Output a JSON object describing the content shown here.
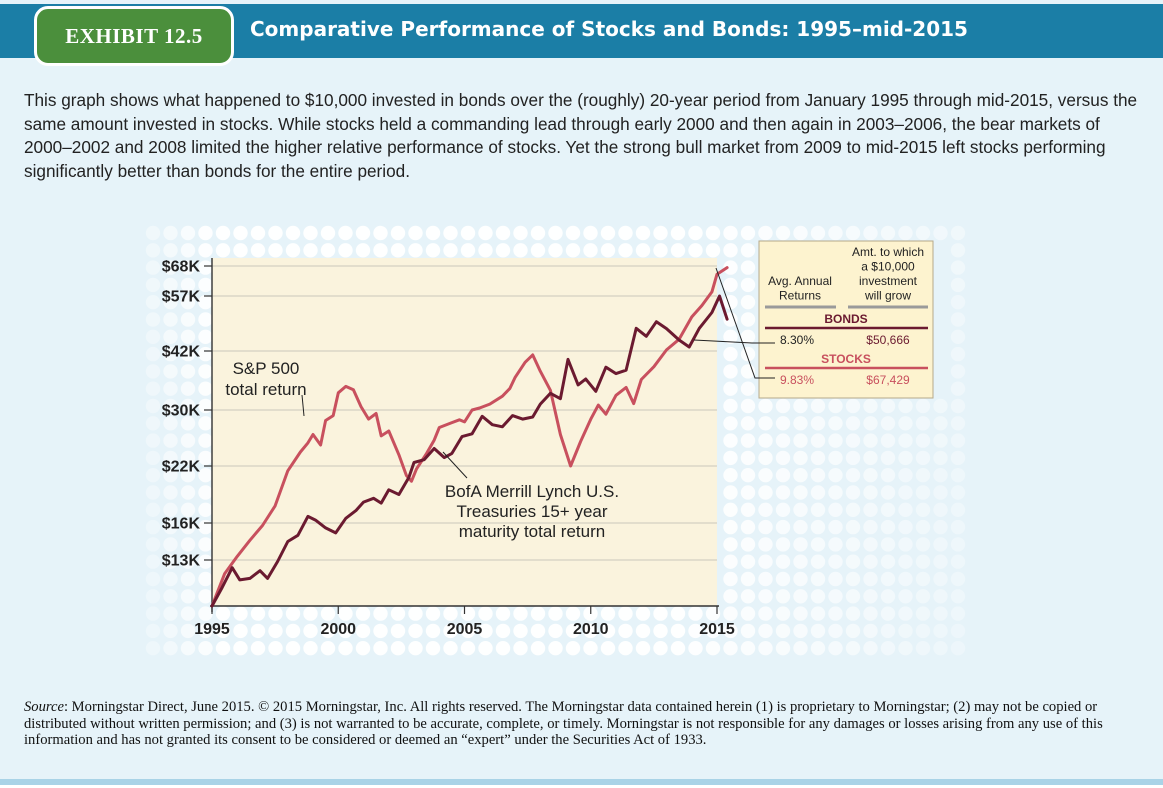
{
  "exhibit_label": "EXHIBIT 12.5",
  "title": "Comparative Performance of Stocks and Bonds: 1995–mid-2015",
  "caption": "This graph shows what happened to $10,000 invested in bonds over the (roughly) 20-year period from January 1995 through mid-2015, versus the same amount invested in stocks. While stocks held a commanding lead through early 2000 and then again in 2003–2006, the bear markets of 2000–2002 and 2008 limited the higher relative performance of stocks. Yet the strong bull market from 2009 to mid-2015 left stocks performing significantly better than bonds for the entire period.",
  "source": {
    "label": "Source",
    "text": ": Morningstar Direct, June 2015. © 2015 Morningstar, Inc. All rights reserved. The Morningstar data contained herein (1) is proprietary to Morningstar; (2) may not be copied or distributed without written permission; and (3) is not warranted to be accurate, complete, or timely. Morningstar is not responsible for any damages or losses arising from any use of this information and has not granted its consent to be considered or deemed an “expert” under the Securities Act of 1933."
  },
  "colors": {
    "header_band": "#1b7ea6",
    "badge": "#4b8f3c",
    "panel": "#e6f3f9",
    "plot_bg": "#faf3dd",
    "stocks": "#c8505e",
    "bonds": "#6b1a30",
    "dots": "#ffffff"
  },
  "chart_data": {
    "type": "line",
    "title": "",
    "xlabel": "",
    "ylabel": "",
    "ylim": [
      10000,
      70000
    ],
    "xlim": [
      1995,
      2015
    ],
    "x_ticks": [
      1995,
      2000,
      2005,
      2010,
      2015
    ],
    "x_tick_labels": [
      "1995",
      "2000",
      "2005",
      "2010",
      "2015"
    ],
    "y_ticks": [
      13000,
      16000,
      22000,
      30000,
      42000,
      57000,
      68000
    ],
    "y_tick_labels": [
      "$13K",
      "$16K",
      "$22K",
      "$30K",
      "$42K",
      "$57K",
      "$68K"
    ],
    "grid": true,
    "series": [
      {
        "key": "stocks",
        "name": "S&P 500 total return",
        "color": "#c8505e",
        "points": [
          [
            1995,
            10000
          ],
          [
            1995.5,
            12100
          ],
          [
            1996,
            13300
          ],
          [
            1996.5,
            14600
          ],
          [
            1997,
            15800
          ],
          [
            1997.5,
            17800
          ],
          [
            1998,
            21500
          ],
          [
            1998.5,
            24000
          ],
          [
            1998.8,
            25300
          ],
          [
            1999,
            26500
          ],
          [
            1999.3,
            25000
          ],
          [
            1999.5,
            28500
          ],
          [
            1999.8,
            29200
          ],
          [
            2000,
            33500
          ],
          [
            2000.3,
            34800
          ],
          [
            2000.6,
            34100
          ],
          [
            2000.9,
            30700
          ],
          [
            2001.2,
            28700
          ],
          [
            2001.5,
            29500
          ],
          [
            2001.7,
            26300
          ],
          [
            2002,
            27000
          ],
          [
            2002.4,
            23600
          ],
          [
            2002.7,
            21000
          ],
          [
            2002.9,
            20400
          ],
          [
            2003.1,
            21700
          ],
          [
            2003.5,
            23800
          ],
          [
            2003.8,
            25700
          ],
          [
            2004,
            27500
          ],
          [
            2004.5,
            28200
          ],
          [
            2004.8,
            28600
          ],
          [
            2005,
            28300
          ],
          [
            2005.3,
            30000
          ],
          [
            2005.6,
            30400
          ],
          [
            2006,
            31200
          ],
          [
            2006.5,
            32800
          ],
          [
            2006.8,
            34400
          ],
          [
            2007,
            36600
          ],
          [
            2007.4,
            39700
          ],
          [
            2007.7,
            41200
          ],
          [
            2008,
            37900
          ],
          [
            2008.4,
            34000
          ],
          [
            2008.8,
            26500
          ],
          [
            2009.2,
            22000
          ],
          [
            2009.6,
            25500
          ],
          [
            2010,
            28700
          ],
          [
            2010.3,
            31000
          ],
          [
            2010.6,
            29400
          ],
          [
            2011,
            33000
          ],
          [
            2011.4,
            34600
          ],
          [
            2011.7,
            31300
          ],
          [
            2012,
            36200
          ],
          [
            2012.5,
            38800
          ],
          [
            2013,
            42300
          ],
          [
            2013.5,
            45200
          ],
          [
            2014,
            51300
          ],
          [
            2014.4,
            54400
          ],
          [
            2014.8,
            58500
          ],
          [
            2015,
            65000
          ],
          [
            2015.4,
            67429
          ]
        ]
      },
      {
        "key": "bonds",
        "name": "BofA Merrill Lynch U.S. Treasuries 15+ year maturity total return",
        "color": "#6b1a30",
        "points": [
          [
            1995,
            10000
          ],
          [
            1995.4,
            11200
          ],
          [
            1995.8,
            12500
          ],
          [
            1996.1,
            11700
          ],
          [
            1996.5,
            11800
          ],
          [
            1996.9,
            12300
          ],
          [
            1997.2,
            11800
          ],
          [
            1997.6,
            12900
          ],
          [
            1998,
            14500
          ],
          [
            1998.4,
            15000
          ],
          [
            1998.8,
            16700
          ],
          [
            1999.1,
            16300
          ],
          [
            1999.5,
            15600
          ],
          [
            1999.9,
            15200
          ],
          [
            2000.3,
            16500
          ],
          [
            2000.7,
            17300
          ],
          [
            2001,
            18200
          ],
          [
            2001.4,
            18600
          ],
          [
            2001.7,
            18100
          ],
          [
            2002,
            19500
          ],
          [
            2002.4,
            19000
          ],
          [
            2002.8,
            20800
          ],
          [
            2003,
            22500
          ],
          [
            2003.4,
            22900
          ],
          [
            2003.8,
            24500
          ],
          [
            2004.2,
            23200
          ],
          [
            2004.5,
            23800
          ],
          [
            2004.9,
            26200
          ],
          [
            2005.3,
            26600
          ],
          [
            2005.7,
            29100
          ],
          [
            2006.1,
            27900
          ],
          [
            2006.5,
            27600
          ],
          [
            2006.9,
            29200
          ],
          [
            2007.3,
            28700
          ],
          [
            2007.7,
            29000
          ],
          [
            2008,
            31200
          ],
          [
            2008.4,
            33400
          ],
          [
            2008.8,
            32300
          ],
          [
            2009.1,
            40300
          ],
          [
            2009.5,
            35100
          ],
          [
            2009.8,
            36300
          ],
          [
            2010.2,
            33800
          ],
          [
            2010.6,
            38700
          ],
          [
            2011,
            37400
          ],
          [
            2011.4,
            38100
          ],
          [
            2011.8,
            48200
          ],
          [
            2012.2,
            46000
          ],
          [
            2012.6,
            50000
          ],
          [
            2013,
            48100
          ],
          [
            2013.5,
            45000
          ],
          [
            2013.9,
            43100
          ],
          [
            2014.3,
            48200
          ],
          [
            2014.8,
            52500
          ],
          [
            2015.1,
            57000
          ],
          [
            2015.4,
            50666
          ]
        ]
      }
    ],
    "annotations": [
      {
        "key": "stocks_label",
        "lines": [
          "S&P 500",
          "total return"
        ]
      },
      {
        "key": "bonds_label",
        "lines": [
          "BofA Merrill Lynch U.S.",
          "Treasuries 15+ year",
          "maturity total return"
        ]
      }
    ],
    "summary_table": {
      "col1_header": [
        "Avg. Annual",
        "Returns"
      ],
      "col2_header": [
        "Amt. to which",
        "a $10,000",
        "investment",
        "will grow"
      ],
      "rows": [
        {
          "section": "BONDS",
          "avg_annual_return": "8.30%",
          "amount": "$50,666"
        },
        {
          "section": "STOCKS",
          "avg_annual_return": "9.83%",
          "amount": "$67,429"
        }
      ]
    },
    "legend": "right"
  }
}
